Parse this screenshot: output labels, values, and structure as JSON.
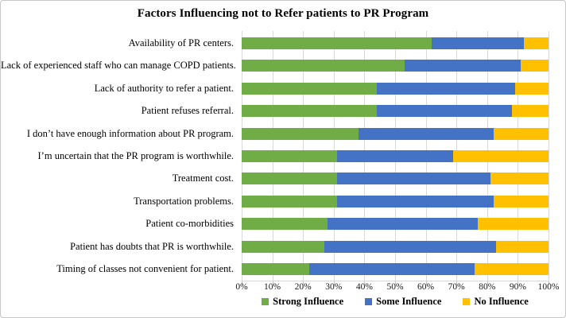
{
  "figure": {
    "background": "#ffffff",
    "border_color": "#c6c6c6"
  },
  "chart_data": {
    "type": "bar",
    "orientation": "horizontal",
    "stacked": true,
    "title": "Factors Influencing not to Refer patients to PR Program",
    "categories": [
      "Availability of PR centers.",
      "Lack of experienced staff who can manage COPD patients.",
      "Lack of authority to refer a patient.",
      "Patient refuses referral.",
      "I don’t have enough information about PR program.",
      "I’m uncertain that the PR program is worthwhile.",
      "Treatment cost.",
      "Transportation problems.",
      "Patient co-morbidities",
      "Patient has doubts that PR is worthwhile.",
      "Timing of classes not convenient for patient."
    ],
    "series": [
      {
        "name": "Strong Influence",
        "color": "#70AD47",
        "values": [
          62,
          53,
          44,
          44,
          38,
          31,
          31,
          31,
          28,
          27,
          22
        ]
      },
      {
        "name": "Some Influence",
        "color": "#4472C4",
        "values": [
          30,
          38,
          45,
          44,
          44,
          38,
          50,
          51,
          49,
          56,
          54
        ]
      },
      {
        "name": "No Influence",
        "color": "#FFC000",
        "values": [
          8,
          9,
          11,
          12,
          18,
          31,
          19,
          18,
          23,
          17,
          24
        ]
      }
    ],
    "x_axis": {
      "min": 0,
      "max": 100,
      "tick_labels": [
        "0%",
        "10%",
        "20%",
        "30%",
        "40%",
        "50%",
        "60%",
        "70%",
        "80%",
        "90%",
        "100%"
      ],
      "gridlines": true,
      "gridline_color": "#d9d9d9"
    },
    "legend": {
      "position": "bottom",
      "items": [
        "Strong Influence",
        "Some Influence",
        "No Influence"
      ]
    }
  }
}
